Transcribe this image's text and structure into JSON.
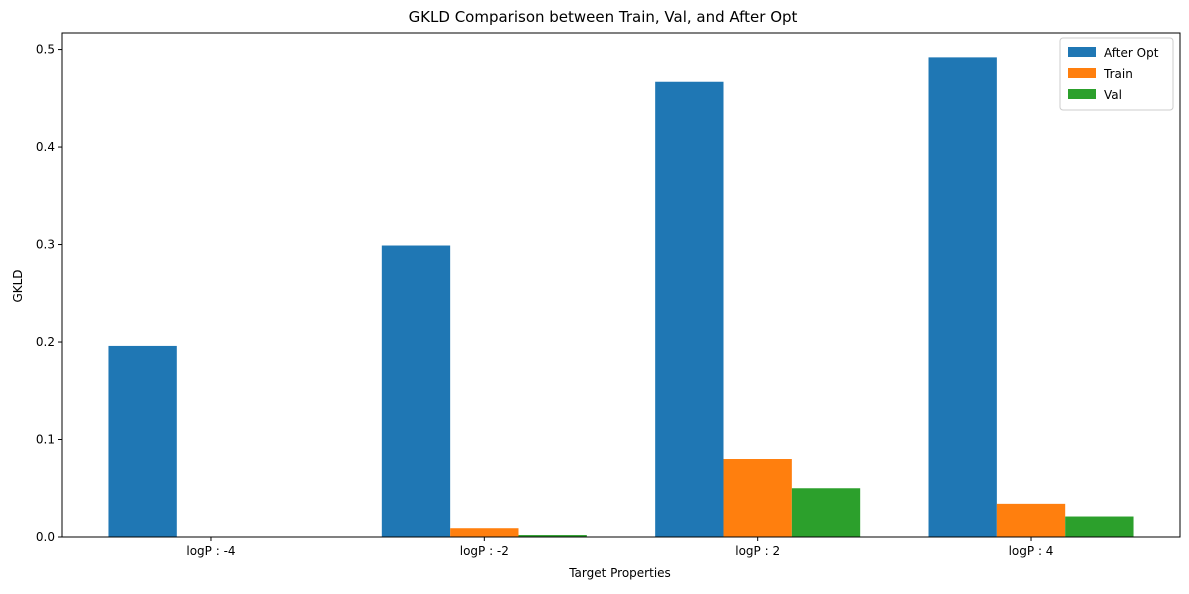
{
  "chart_data": {
    "type": "bar",
    "title": "GKLD Comparison between Train, Val, and After Opt",
    "xlabel": "Target Properties",
    "ylabel": "GKLD",
    "categories": [
      "logP : -4",
      "logP : -2",
      "logP : 2",
      "logP : 4"
    ],
    "series": [
      {
        "name": "After Opt",
        "color": "#1f77b4",
        "values": [
          0.196,
          0.299,
          0.467,
          0.492
        ]
      },
      {
        "name": "Train",
        "color": "#ff7f0e",
        "values": [
          0.0,
          0.009,
          0.08,
          0.034
        ]
      },
      {
        "name": "Val",
        "color": "#2ca02c",
        "values": [
          0.0,
          0.002,
          0.05,
          0.021
        ]
      }
    ],
    "ylim": [
      0,
      0.517
    ],
    "yticks": [
      0.0,
      0.1,
      0.2,
      0.3,
      0.4,
      0.5
    ],
    "ytick_labels": [
      "0.0",
      "0.1",
      "0.2",
      "0.3",
      "0.4",
      "0.5"
    ],
    "legend_position": "top-right",
    "grid": false
  }
}
